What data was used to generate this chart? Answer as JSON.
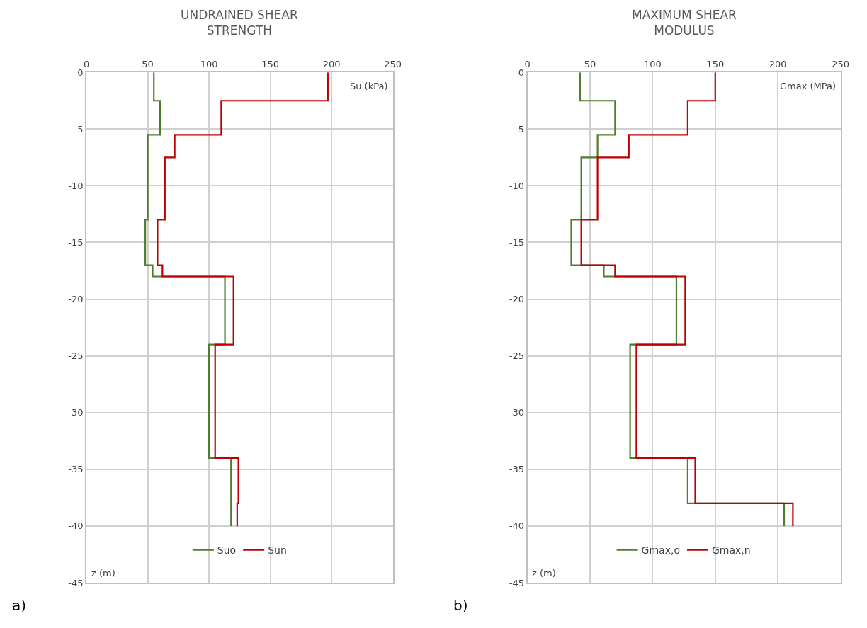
{
  "chart_data": [
    {
      "type": "line",
      "title": "UNDRAINED SHEAR\nSTRENGTH",
      "xlabel": "Su (kPa)",
      "ylabel": "z (m)",
      "annotations": [
        "a)"
      ],
      "xlim": [
        0,
        250
      ],
      "xticks": [
        0,
        50,
        100,
        150,
        200,
        250
      ],
      "ylim": [
        -45,
        0
      ],
      "yticks": [
        0,
        -5,
        -10,
        -15,
        -20,
        -25,
        -30,
        -35,
        -40,
        -45
      ],
      "grid": true,
      "legend": "bottom",
      "marker": "none",
      "line_style": "solid",
      "series": [
        {
          "name": "Suo",
          "color": "#4e7d2e",
          "x": [
            55,
            55,
            60,
            60,
            50,
            50,
            48,
            48,
            54,
            54,
            113,
            113,
            100,
            100,
            118,
            118
          ],
          "values": [
            0,
            -2.5,
            -2.5,
            -5.5,
            -5.5,
            -13,
            -13,
            -17,
            -17,
            -18,
            -18,
            -24,
            -24,
            -34,
            -34,
            -40
          ]
        },
        {
          "name": "Sun",
          "color": "#c00000",
          "x": [
            197,
            197,
            110,
            110,
            72,
            72,
            64,
            64,
            58,
            58,
            62,
            62,
            120,
            120,
            105,
            105,
            124,
            124,
            123,
            123
          ],
          "values": [
            0,
            -2.5,
            -2.5,
            -5.5,
            -5.5,
            -7.5,
            -7.5,
            -13,
            -13,
            -17,
            -17,
            -18,
            -18,
            -24,
            -24,
            -34,
            -34,
            -38,
            -38,
            -40
          ]
        }
      ]
    },
    {
      "type": "line",
      "title": "MAXIMUM SHEAR\nMODULUS",
      "xlabel": "Gmax (MPa)",
      "ylabel": "z (m)",
      "annotations": [
        "b)"
      ],
      "xlim": [
        0,
        250
      ],
      "xticks": [
        0,
        50,
        100,
        150,
        200,
        250
      ],
      "ylim": [
        -45,
        0
      ],
      "yticks": [
        0,
        -5,
        -10,
        -15,
        -20,
        -25,
        -30,
        -35,
        -40,
        -45
      ],
      "grid": true,
      "legend": "bottom",
      "marker": "none",
      "line_style": "solid",
      "series": [
        {
          "name": "Gmax,o",
          "color": "#4e7d2e",
          "x": [
            42,
            42,
            70,
            70,
            56,
            56,
            43,
            43,
            35,
            35,
            61,
            61,
            119,
            119,
            82,
            82,
            128,
            128,
            205,
            205
          ],
          "values": [
            0,
            -2.5,
            -2.5,
            -5.5,
            -5.5,
            -7.5,
            -7.5,
            -13,
            -13,
            -17,
            -17,
            -18,
            -18,
            -24,
            -24,
            -34,
            -34,
            -38,
            -38,
            -40
          ]
        },
        {
          "name": "Gmax,n",
          "color": "#c00000",
          "x": [
            150,
            150,
            128,
            128,
            81,
            81,
            56,
            56,
            43,
            43,
            70,
            70,
            126,
            126,
            87,
            87,
            134,
            134,
            212,
            212
          ],
          "values": [
            0,
            -2.5,
            -2.5,
            -5.5,
            -5.5,
            -7.5,
            -7.5,
            -13,
            -13,
            -17,
            -17,
            -18,
            -18,
            -24,
            -24,
            -34,
            -34,
            -38,
            -38,
            -40
          ]
        }
      ]
    }
  ]
}
